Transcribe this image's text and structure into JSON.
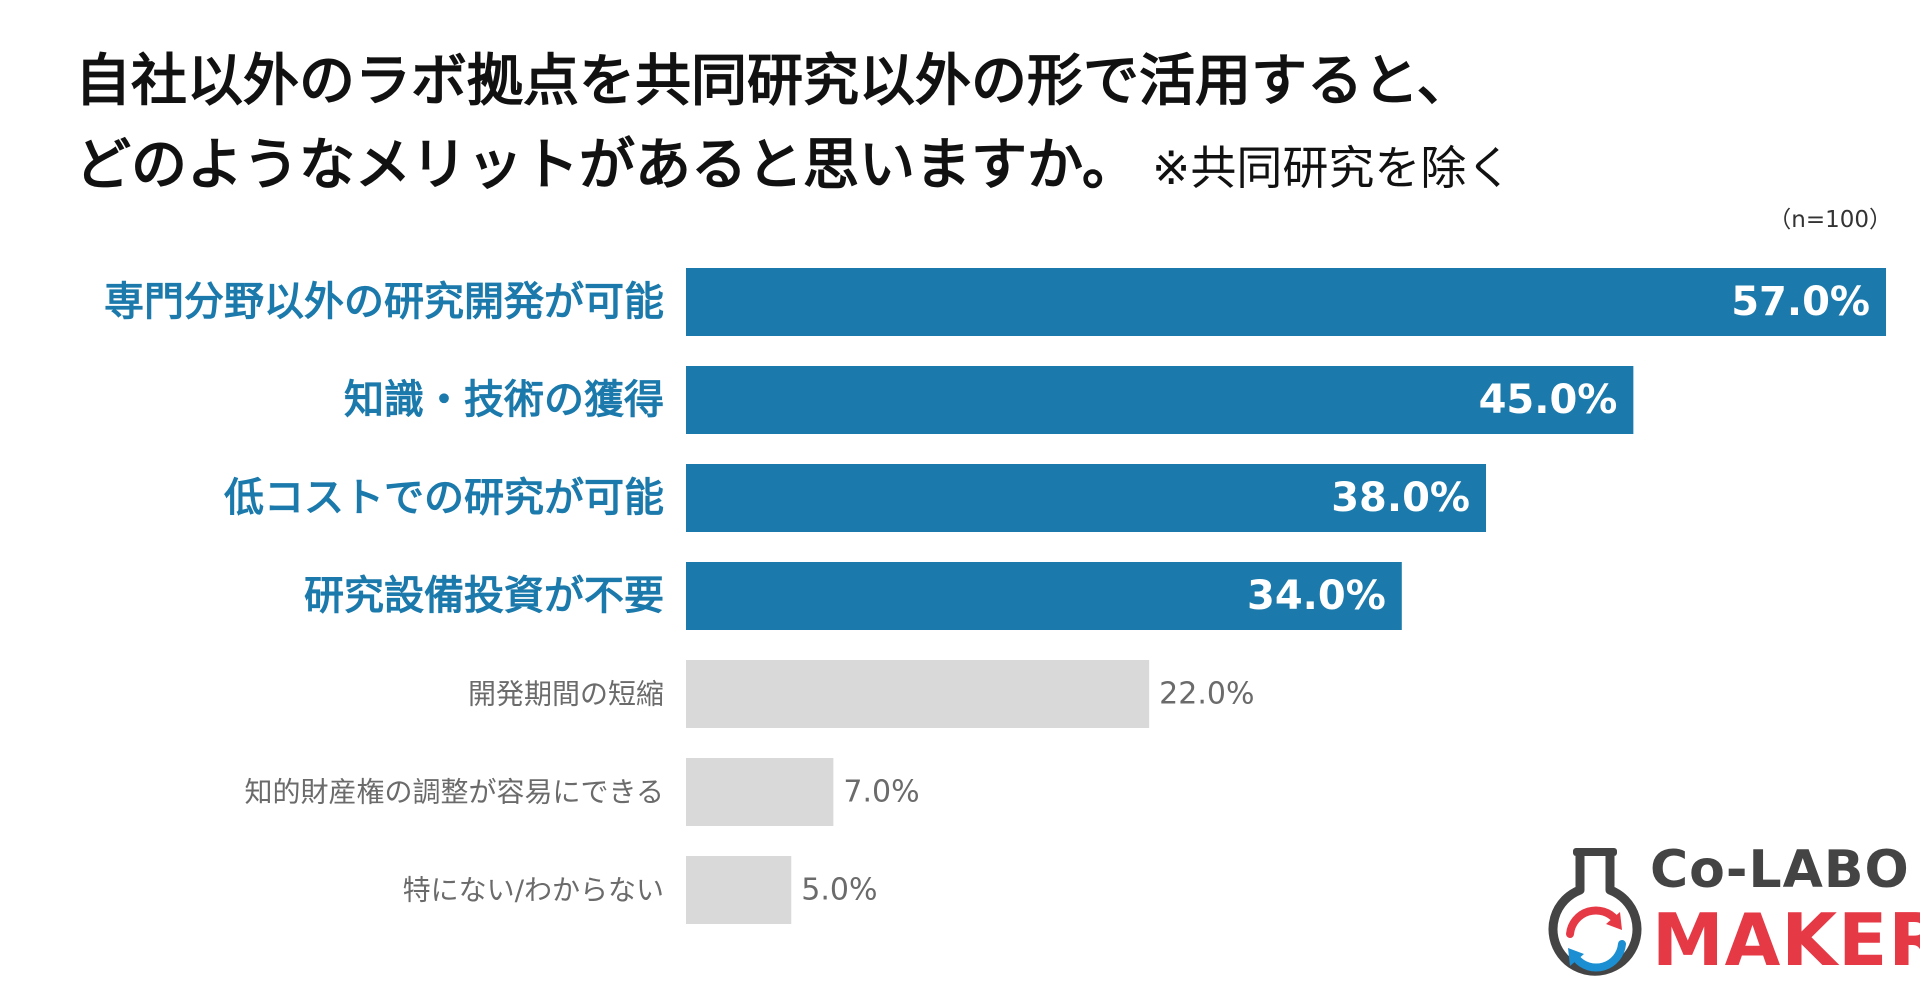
{
  "header": {
    "title_line1": "自社以外のラボ拠点を共同研究以外の形で活用すると、",
    "title_line2": "どのようなメリットがあると思いますか。",
    "title_note": "※共同研究を除く",
    "sample_size": "（n=100）"
  },
  "chart_data": {
    "type": "bar",
    "orientation": "horizontal",
    "categories": [
      "専門分野以外の研究開発が可能",
      "知識・技術の獲得",
      "低コストでの研究が可能",
      "研究設備投資が不要",
      "開発期間の短縮",
      "知的財産権の調整が容易にできる",
      "特にない/わからない"
    ],
    "values": [
      57.0,
      45.0,
      38.0,
      34.0,
      22.0,
      7.0,
      5.0
    ],
    "value_labels": [
      "57.0%",
      "45.0%",
      "38.0%",
      "34.0%",
      "22.0%",
      "7.0%",
      "5.0%"
    ],
    "highlighted": [
      true,
      true,
      true,
      true,
      false,
      false,
      false
    ],
    "xlim": [
      0,
      57
    ],
    "unit": "%",
    "grid": false,
    "legend": "none",
    "colors": {
      "highlight_bar": "#1b7aab",
      "highlight_label": "#1b7aab",
      "normal_bar": "#d9d9d9",
      "normal_label": "#6b6b6b",
      "inside_value": "#ffffff",
      "outside_value": "#6b6b6b"
    }
  },
  "logo": {
    "line1": "Co-LABO",
    "line2": "MAKER",
    "colors": {
      "gray": "#444444",
      "red": "#e63946",
      "blue": "#1b8fd2"
    }
  }
}
